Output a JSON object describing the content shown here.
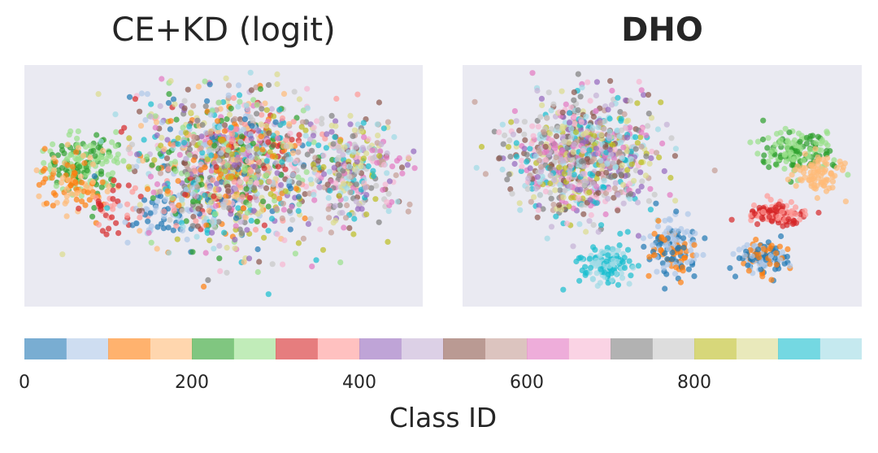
{
  "chart_data": [
    {
      "type": "scatter",
      "title": "CE+KD (logit)",
      "title_weight": "normal",
      "description_of_points": "t-SNE embedding; classes largely intermixed, with a green/orange cluster on the left",
      "axes_visible": false,
      "background": "#eaeaf2",
      "clusters": [
        {
          "class_range": [
            200,
            300
          ],
          "center": [
            0.15,
            0.42
          ],
          "spread": [
            0.09,
            0.13
          ],
          "count": 160
        },
        {
          "class_range": [
            100,
            200
          ],
          "center": [
            0.12,
            0.5
          ],
          "spread": [
            0.08,
            0.12
          ],
          "count": 90
        },
        {
          "class_range": [
            300,
            400
          ],
          "center": [
            0.22,
            0.58
          ],
          "spread": [
            0.07,
            0.1
          ],
          "count": 40
        },
        {
          "class_range": [
            0,
            100
          ],
          "center": [
            0.35,
            0.62
          ],
          "spread": [
            0.09,
            0.1
          ],
          "count": 60
        },
        {
          "class_range": [
            0,
            1000
          ],
          "center": [
            0.52,
            0.42
          ],
          "spread": [
            0.2,
            0.3
          ],
          "count": 1200
        },
        {
          "class_range": [
            400,
            1000
          ],
          "center": [
            0.82,
            0.45
          ],
          "spread": [
            0.11,
            0.2
          ],
          "count": 300
        }
      ]
    },
    {
      "type": "scatter",
      "title": "DHO",
      "title_weight": "bold",
      "description_of_points": "t-SNE embedding; classes form more separated clusters",
      "axes_visible": false,
      "background": "#eaeaf2",
      "clusters": [
        {
          "class_range": [
            400,
            1000
          ],
          "center": [
            0.3,
            0.38
          ],
          "spread": [
            0.16,
            0.22
          ],
          "count": 900
        },
        {
          "class_range": [
            200,
            300
          ],
          "center": [
            0.84,
            0.36
          ],
          "spread": [
            0.08,
            0.08
          ],
          "count": 160
        },
        {
          "class_range": [
            150,
            200
          ],
          "center": [
            0.89,
            0.45
          ],
          "spread": [
            0.06,
            0.08
          ],
          "count": 80
        },
        {
          "class_range": [
            300,
            400
          ],
          "center": [
            0.78,
            0.62
          ],
          "spread": [
            0.07,
            0.04
          ],
          "count": 120
        },
        {
          "class_range": [
            0,
            150
          ],
          "center": [
            0.53,
            0.76
          ],
          "spread": [
            0.06,
            0.1
          ],
          "count": 160
        },
        {
          "class_range": [
            0,
            150
          ],
          "center": [
            0.75,
            0.8
          ],
          "spread": [
            0.06,
            0.06
          ],
          "count": 140
        },
        {
          "class_range": [
            900,
            1000
          ],
          "center": [
            0.36,
            0.83
          ],
          "spread": [
            0.06,
            0.07
          ],
          "count": 140
        }
      ]
    }
  ],
  "colorbar": {
    "label": "Class ID",
    "min": 0,
    "max": 1000,
    "ticks": [
      0,
      200,
      400,
      600,
      800
    ],
    "tick_labels": [
      "0",
      "200",
      "400",
      "600",
      "800"
    ],
    "colors": [
      "#1f77b4",
      "#aec7e8",
      "#ff7f0e",
      "#ffbb78",
      "#2ca02c",
      "#98df8a",
      "#d62728",
      "#ff9896",
      "#9467bd",
      "#c5b0d5",
      "#8c564b",
      "#c49c94",
      "#e377c2",
      "#f7b6d2",
      "#7f7f7f",
      "#c7c7c7",
      "#bcbd22",
      "#dbdb8d",
      "#17becf",
      "#9edae5"
    ]
  }
}
